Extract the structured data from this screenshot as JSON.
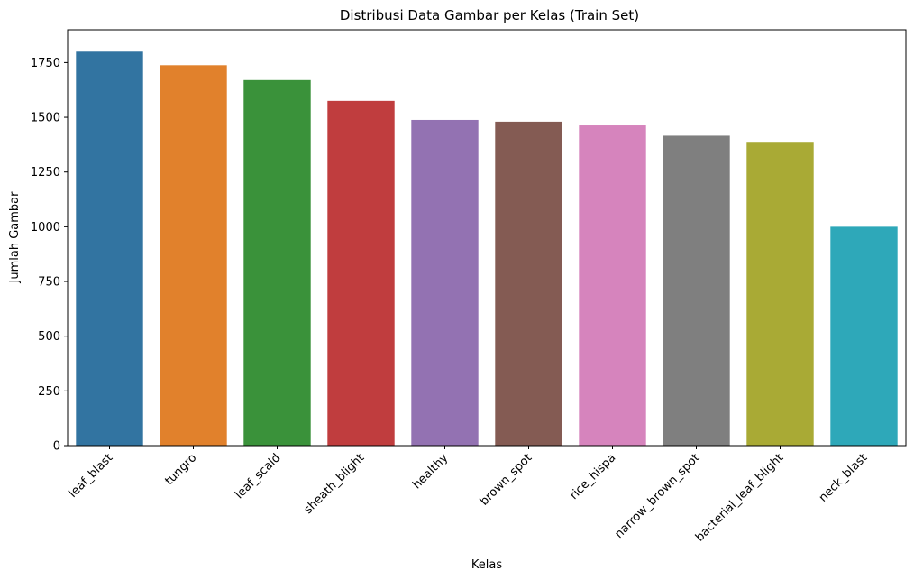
{
  "chart_data": {
    "type": "bar",
    "title": "Distribusi Data Gambar per Kelas (Train Set)",
    "xlabel": "Kelas",
    "ylabel": "Jumlah Gambar",
    "ylim": [
      0,
      1900
    ],
    "yticks": [
      0,
      250,
      500,
      750,
      1000,
      1250,
      1500,
      1750
    ],
    "grid": false,
    "legend": "none",
    "categories": [
      "leaf_blast",
      "tungro",
      "leaf_scald",
      "sheath_blight",
      "healthy",
      "brown_spot",
      "rice_hispa",
      "narrow_brown_spot",
      "bacterial_leaf_blight",
      "neck_blast"
    ],
    "values": [
      1800,
      1738,
      1670,
      1575,
      1488,
      1480,
      1463,
      1416,
      1388,
      1000
    ],
    "colors": [
      "#3274a1",
      "#e1812c",
      "#3a923a",
      "#c03d3e",
      "#9372b2",
      "#845b53",
      "#d684bd",
      "#7f7f7f",
      "#a9aa35",
      "#2ea8b9"
    ]
  }
}
